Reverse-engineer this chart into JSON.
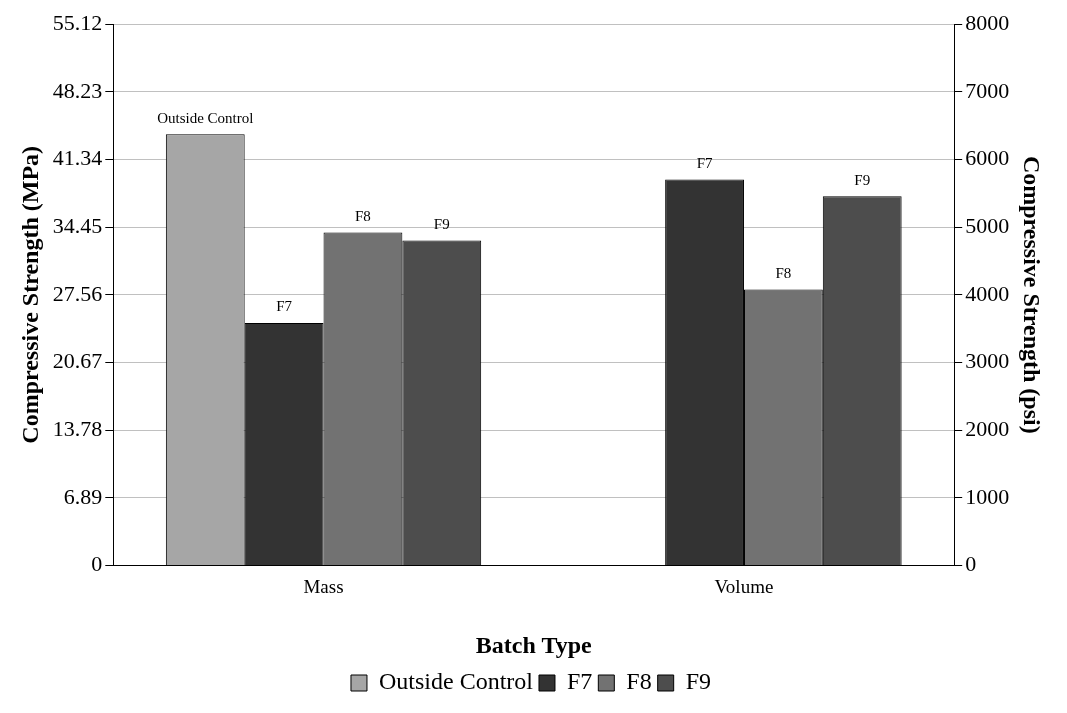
{
  "chart_data": {
    "type": "bar",
    "xlabel": "Batch Type",
    "ylabel": "Compressive Strength (MPa)",
    "y2label": "Compressive Strength (psi)",
    "categories": [
      "Mass",
      "Volume"
    ],
    "series": [
      {
        "name": "Outside Control",
        "color": "#a6a6a6",
        "values": [
          43.9,
          null
        ]
      },
      {
        "name": "F7",
        "color": "#333333",
        "values": [
          24.7,
          39.3
        ]
      },
      {
        "name": "F8",
        "color": "#727272",
        "values": [
          33.9,
          28.1
        ]
      },
      {
        "name": "F9",
        "color": "#4d4d4d",
        "values": [
          33.1,
          37.6
        ]
      }
    ],
    "ylim": [
      0,
      55.12
    ],
    "yticks": [
      0,
      6.89,
      13.78,
      20.67,
      27.56,
      34.45,
      41.34,
      48.23,
      55.12
    ],
    "y2lim": [
      0,
      8000
    ],
    "y2ticks": [
      0,
      1000,
      2000,
      3000,
      4000,
      5000,
      6000,
      7000,
      8000
    ],
    "grid": "y",
    "legend": "bottom"
  }
}
